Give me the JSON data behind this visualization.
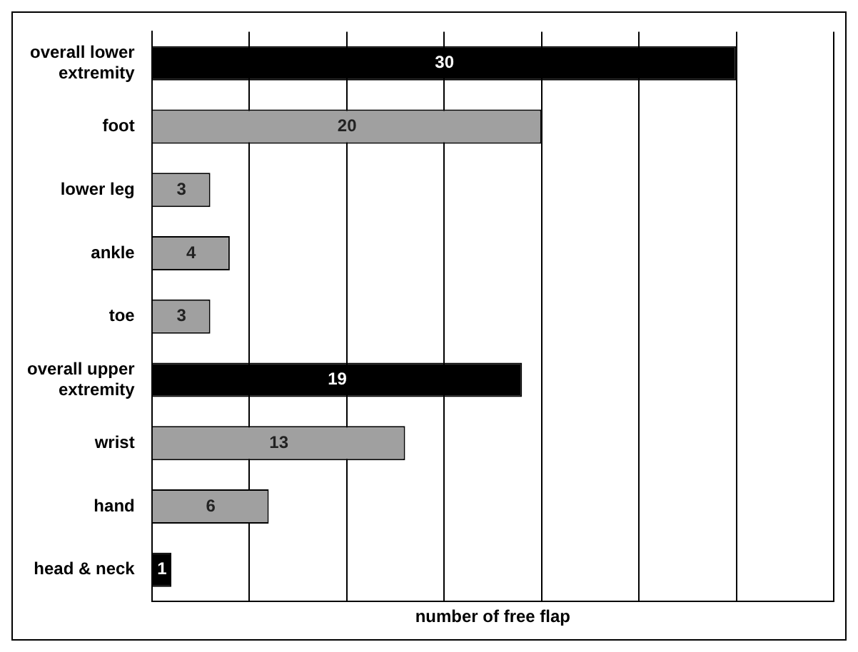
{
  "chart_data": {
    "type": "bar",
    "orientation": "horizontal",
    "xlabel": "number of free flap",
    "categories": [
      "overall lower extremity",
      "foot",
      "lower leg",
      "ankle",
      "toe",
      "overall upper extremity",
      "wrist",
      "hand",
      "head & neck"
    ],
    "values": [
      30,
      20,
      3,
      4,
      3,
      19,
      13,
      6,
      1
    ],
    "colors": [
      "#000000",
      "#a0a0a0",
      "#a0a0a0",
      "#a0a0a0",
      "#a0a0a0",
      "#000000",
      "#a0a0a0",
      "#a0a0a0",
      "#000000"
    ],
    "xlim": [
      0,
      35
    ],
    "xticks": [
      {
        "value": 0,
        "label": null
      },
      {
        "value": 5,
        "label": null
      },
      {
        "value": 10,
        "label": null
      },
      {
        "value": 15,
        "label": null
      },
      {
        "value": 20,
        "label": null
      },
      {
        "value": 25,
        "label": null
      },
      {
        "value": 30,
        "label": null
      },
      {
        "value": 35,
        "label": null
      }
    ],
    "tick_labels": "y",
    "grid": "x",
    "data_labels": true,
    "legend": false
  }
}
